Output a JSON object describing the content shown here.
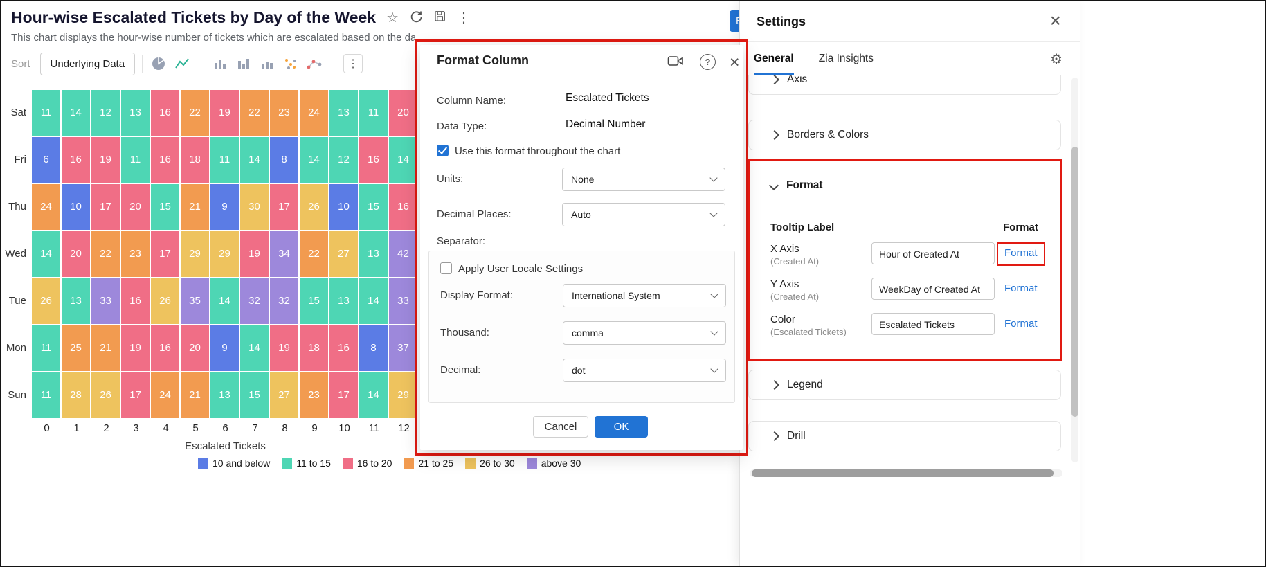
{
  "chart_header": {
    "title": "Hour-wise Escalated Tickets by Day of the Week",
    "subtitle": "This chart displays the hour-wise number of tickets which are escalated based on the day of the w",
    "partial_button_label": "B"
  },
  "toolbar": {
    "sort_label": "Sort",
    "underlying_data_label": "Underlying Data"
  },
  "icons": {
    "star": "☆",
    "kebab": "⋮",
    "close": "×",
    "gear": "⚙",
    "help": "?"
  },
  "chart_data": {
    "type": "heatmap",
    "title": "Hour-wise Escalated Tickets by Day of the Week",
    "xlabel": "Escalated Tickets",
    "x": [
      0,
      1,
      2,
      3,
      4,
      5,
      6,
      7,
      8,
      9,
      10,
      11,
      12
    ],
    "rows": [
      "Sat",
      "Fri",
      "Thu",
      "Wed",
      "Tue",
      "Mon",
      "Sun"
    ],
    "values": [
      [
        11,
        14,
        12,
        13,
        16,
        22,
        19,
        22,
        23,
        24,
        13,
        11,
        20
      ],
      [
        6,
        16,
        19,
        11,
        16,
        18,
        11,
        14,
        8,
        14,
        12,
        16,
        14
      ],
      [
        24,
        10,
        17,
        20,
        15,
        21,
        9,
        30,
        17,
        26,
        10,
        15,
        16
      ],
      [
        14,
        20,
        22,
        23,
        17,
        29,
        29,
        19,
        34,
        22,
        27,
        13,
        42
      ],
      [
        26,
        13,
        33,
        16,
        26,
        35,
        14,
        32,
        32,
        15,
        13,
        14,
        33
      ],
      [
        11,
        25,
        21,
        19,
        16,
        20,
        9,
        14,
        19,
        18,
        16,
        8,
        37
      ],
      [
        11,
        28,
        26,
        17,
        24,
        21,
        13,
        15,
        27,
        23,
        17,
        14,
        29
      ]
    ],
    "legend": [
      {
        "label": "10 and below",
        "color": "#5B7CE5",
        "max": 10
      },
      {
        "label": "11 to 15",
        "color": "#4ED6B4",
        "max": 15
      },
      {
        "label": "16 to 20",
        "color": "#F06E86",
        "max": 20
      },
      {
        "label": "21 to 25",
        "color": "#F29B50",
        "max": 25
      },
      {
        "label": "26 to 30",
        "color": "#EEC35E",
        "max": 30
      },
      {
        "label": "above 30",
        "color": "#9D88DB",
        "max": null
      }
    ],
    "legend_position": "bottom"
  },
  "modal": {
    "title": "Format Column",
    "column_name_label": "Column Name:",
    "column_name_value": "Escalated Tickets",
    "data_type_label": "Data Type:",
    "data_type_value": "Decimal Number",
    "use_format_label": "Use this format throughout the chart",
    "units_label": "Units:",
    "units_value": "None",
    "decimal_places_label": "Decimal Places:",
    "decimal_places_value": "Auto",
    "separator_label": "Separator:",
    "apply_locale_label": "Apply User Locale Settings",
    "display_format_label": "Display Format:",
    "display_format_value": "International System",
    "thousand_label": "Thousand:",
    "thousand_value": "comma",
    "decimal_label": "Decimal:",
    "decimal_value": "dot",
    "cancel_label": "Cancel",
    "ok_label": "OK"
  },
  "settings": {
    "title": "Settings",
    "tabs": [
      {
        "label": "General",
        "active": true
      },
      {
        "label": "Zia Insights",
        "active": false
      }
    ],
    "sections": [
      "Axis",
      "Borders & Colors",
      "Format",
      "Legend",
      "Drill"
    ],
    "format_section": {
      "tooltip_label_header": "Tooltip Label",
      "format_header": "Format",
      "rows": [
        {
          "axis": "X Axis",
          "sub": "(Created At)",
          "value": "Hour of Created At",
          "action": "Format"
        },
        {
          "axis": "Y Axis",
          "sub": "(Created At)",
          "value": "WeekDay of Created At",
          "action": "Format"
        },
        {
          "axis": "Color",
          "sub": "(Escalated Tickets)",
          "value": "Escalated Tickets",
          "action": "Format"
        }
      ]
    }
  },
  "accent_color": "#2173d4",
  "annotation_color": "#e11a12"
}
